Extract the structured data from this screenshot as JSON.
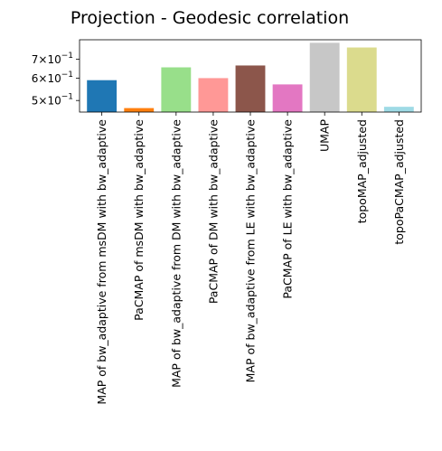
{
  "chart_data": {
    "type": "bar",
    "title": "Projection - Geodesic correlation",
    "xlabel": "",
    "ylabel": "",
    "yscale": "log",
    "ylim": [
      0.455,
      0.82
    ],
    "grid": false,
    "legend": "none",
    "yticks": [
      {
        "value": 0.5,
        "base": "5",
        "sup": "−1"
      },
      {
        "value": 0.6,
        "base": "6",
        "sup": "−1"
      },
      {
        "value": 0.7,
        "base": "7",
        "sup": "−1"
      }
    ],
    "categories": [
      "MAP of bw_adaptive from msDM with bw_adaptive",
      "PaCMAP of msDM with bw_adaptive",
      "MAP of bw_adaptive from DM with bw_adaptive",
      "PaCMAP of DM with bw_adaptive",
      "MAP of bw_adaptive from LE with bw_adaptive",
      "PaCMAP of LE with bw_adaptive",
      "UMAP",
      "topoMAP_adjusted",
      "topoPaCMAP_adjusted"
    ],
    "values": [
      0.59,
      0.47,
      0.655,
      0.6,
      0.665,
      0.57,
      0.8,
      0.77,
      0.475
    ],
    "colors": [
      "#1f77b4",
      "#ff7f0e",
      "#98df8a",
      "#ff9896",
      "#8c564b",
      "#e377c2",
      "#c7c7c7",
      "#dbdb8d",
      "#9edae5"
    ]
  }
}
